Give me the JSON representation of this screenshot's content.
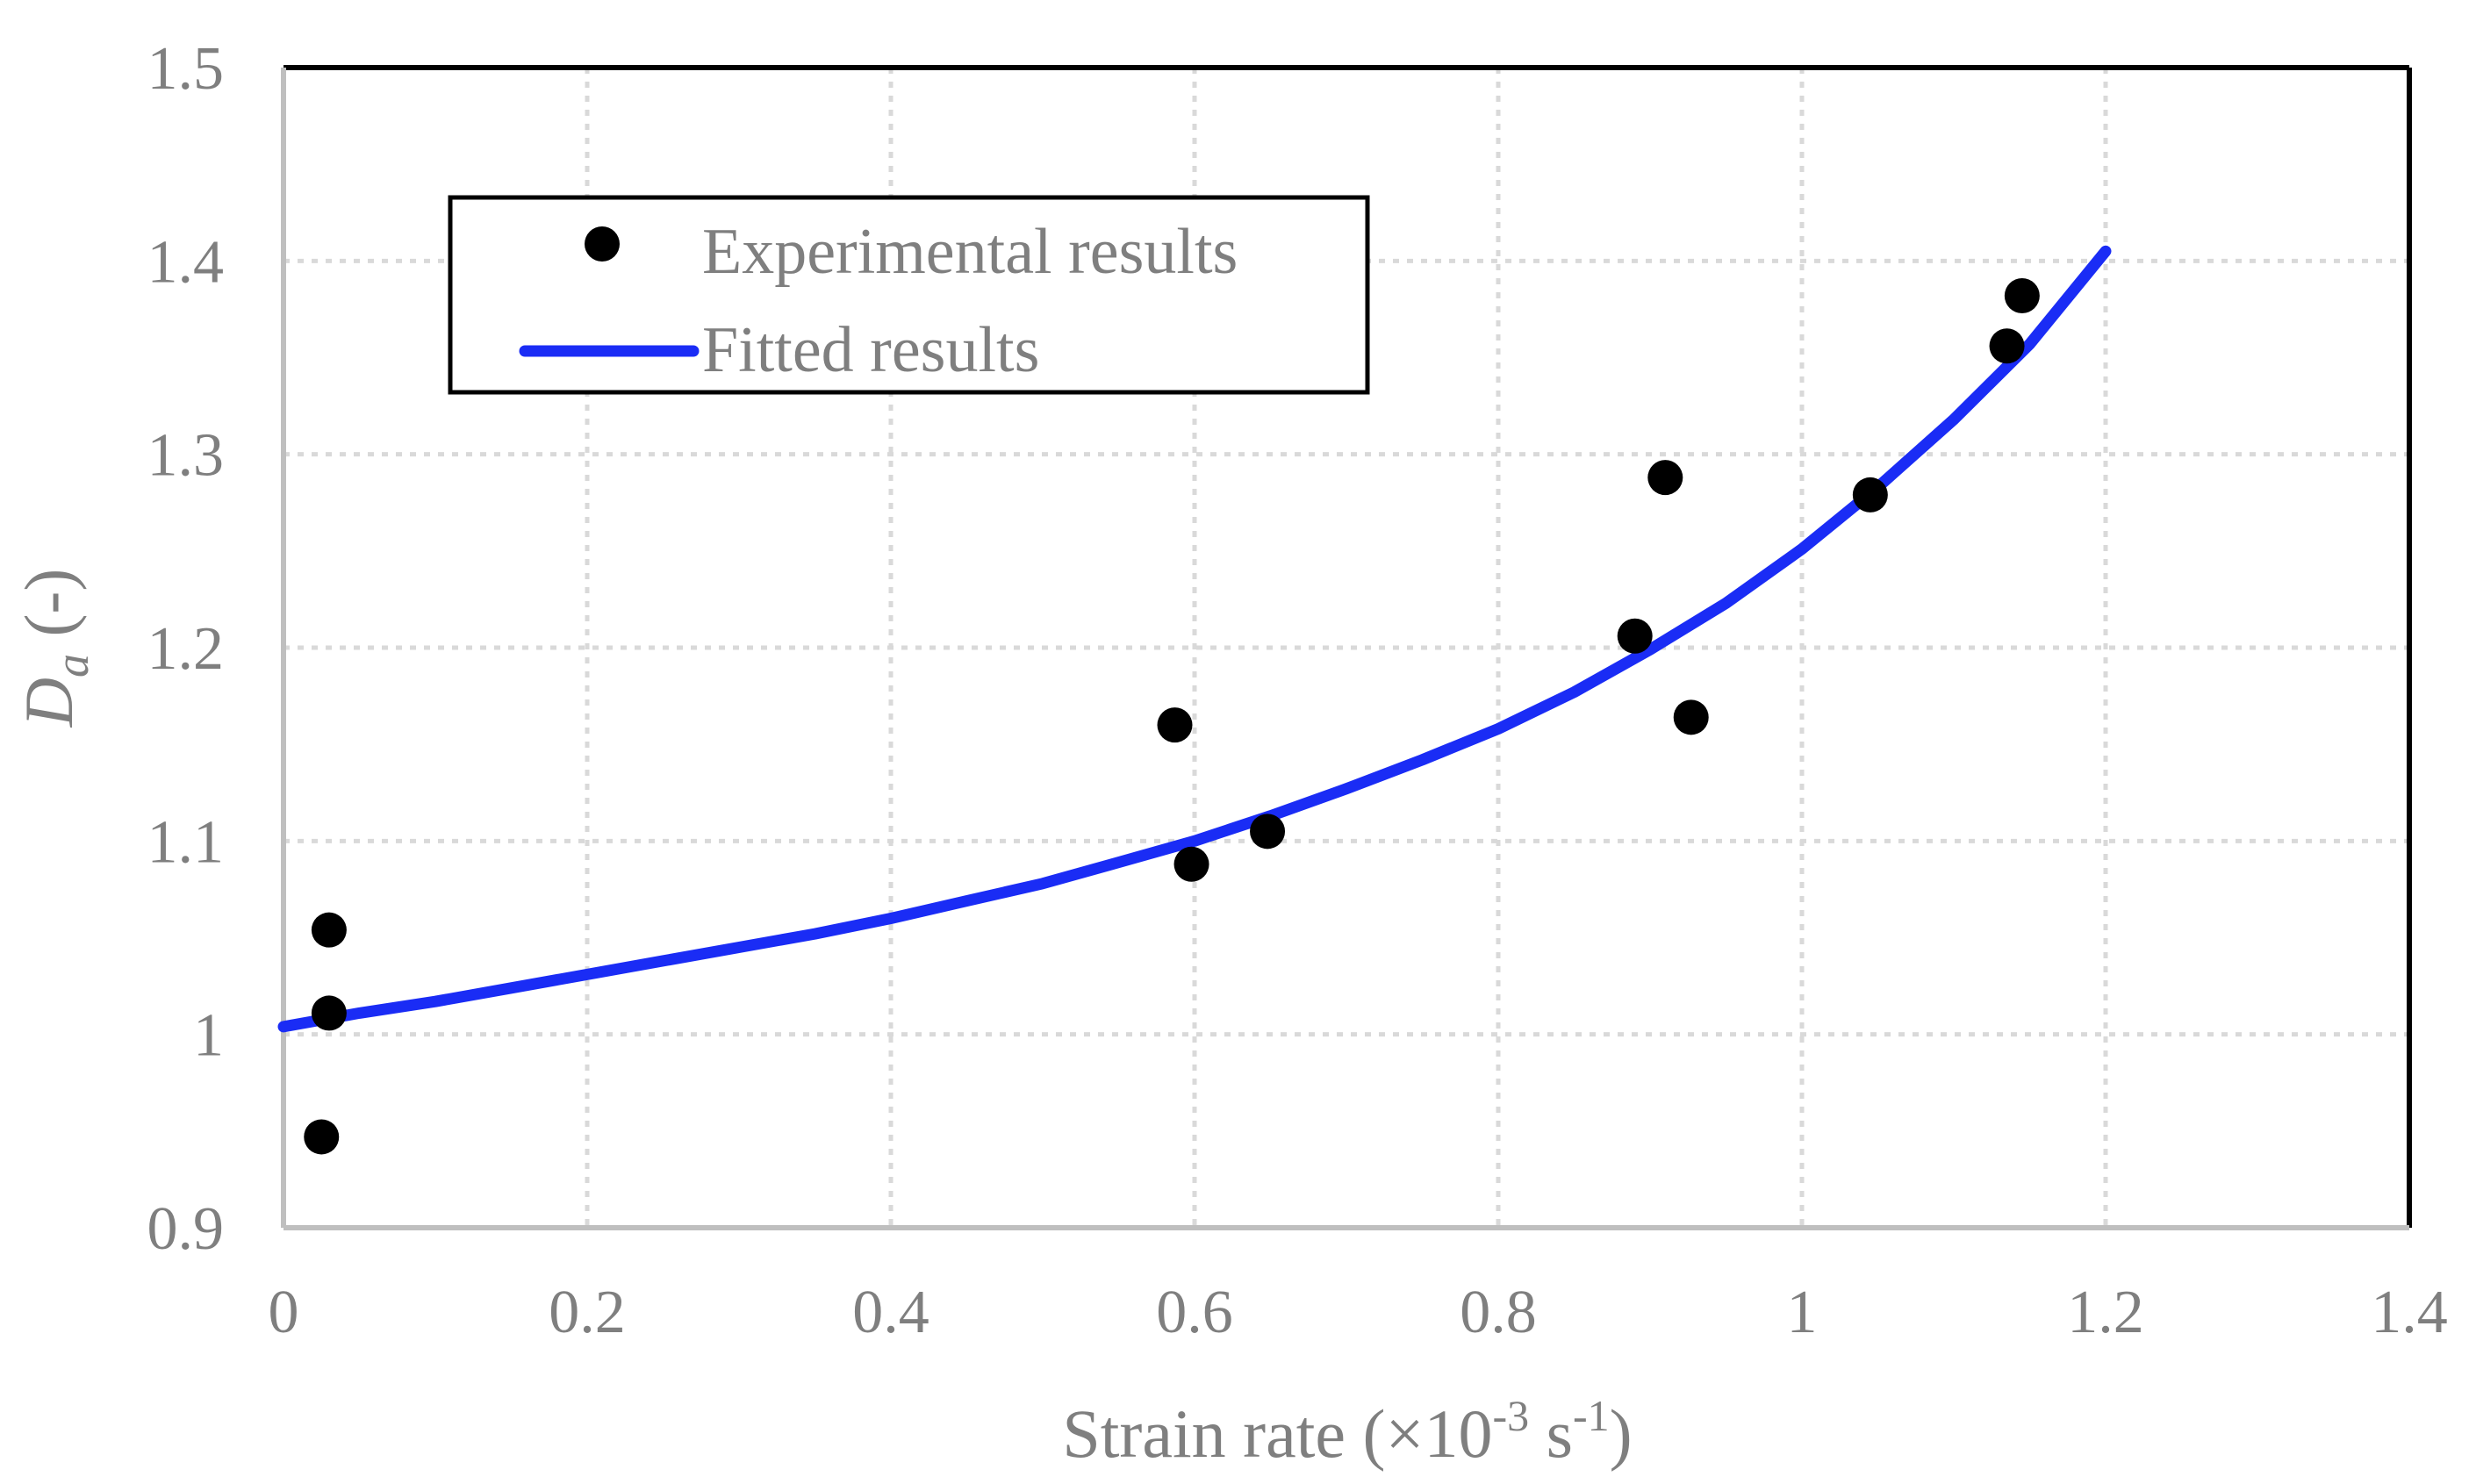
{
  "chart_data": {
    "type": "scatter",
    "title": "",
    "xlabel": {
      "prefix": "Strain rate (×10",
      "exp1": "-3",
      "mid": " s",
      "exp2": "-1",
      "suffix": ")"
    },
    "ylabel": {
      "main": "D",
      "sub": "a",
      "suffix": " (-)"
    },
    "xlim": [
      0,
      1.4
    ],
    "ylim": [
      0.9,
      1.5
    ],
    "x_ticks": [
      0,
      0.2,
      0.4,
      0.6,
      0.8,
      1.0,
      1.2,
      1.4
    ],
    "x_tick_labels": [
      "0",
      "0.2",
      "0.4",
      "0.6",
      "0.8",
      "1",
      "1.2",
      "1.4"
    ],
    "y_ticks": [
      0.9,
      1.0,
      1.1,
      1.2,
      1.3,
      1.4,
      1.5
    ],
    "y_tick_labels": [
      "0.9",
      "1",
      "1.1",
      "1.2",
      "1.3",
      "1.4",
      "1.5"
    ],
    "grid": true,
    "legend_position": "top-left",
    "series": [
      {
        "name": "Experimental results",
        "type": "scatter",
        "color": "#000000",
        "points": [
          {
            "x": 0.025,
            "y": 0.947
          },
          {
            "x": 0.03,
            "y": 1.011
          },
          {
            "x": 0.03,
            "y": 1.054
          },
          {
            "x": 0.587,
            "y": 1.16
          },
          {
            "x": 0.598,
            "y": 1.088
          },
          {
            "x": 0.648,
            "y": 1.105
          },
          {
            "x": 0.89,
            "y": 1.206
          },
          {
            "x": 0.91,
            "y": 1.288
          },
          {
            "x": 0.927,
            "y": 1.164
          },
          {
            "x": 1.045,
            "y": 1.279
          },
          {
            "x": 1.135,
            "y": 1.356
          },
          {
            "x": 1.145,
            "y": 1.382
          }
        ]
      },
      {
        "name": "Fitted results",
        "type": "line",
        "color": "#1a2cf5",
        "points": [
          {
            "x": 0.0,
            "y": 1.004
          },
          {
            "x": 0.05,
            "y": 1.011
          },
          {
            "x": 0.1,
            "y": 1.017
          },
          {
            "x": 0.15,
            "y": 1.024
          },
          {
            "x": 0.2,
            "y": 1.031
          },
          {
            "x": 0.25,
            "y": 1.038
          },
          {
            "x": 0.3,
            "y": 1.045
          },
          {
            "x": 0.35,
            "y": 1.052
          },
          {
            "x": 0.4,
            "y": 1.06
          },
          {
            "x": 0.45,
            "y": 1.069
          },
          {
            "x": 0.5,
            "y": 1.078
          },
          {
            "x": 0.55,
            "y": 1.089
          },
          {
            "x": 0.6,
            "y": 1.1
          },
          {
            "x": 0.65,
            "y": 1.113
          },
          {
            "x": 0.7,
            "y": 1.127
          },
          {
            "x": 0.75,
            "y": 1.142
          },
          {
            "x": 0.8,
            "y": 1.158
          },
          {
            "x": 0.85,
            "y": 1.177
          },
          {
            "x": 0.9,
            "y": 1.199
          },
          {
            "x": 0.95,
            "y": 1.223
          },
          {
            "x": 1.0,
            "y": 1.251
          },
          {
            "x": 1.05,
            "y": 1.283
          },
          {
            "x": 1.1,
            "y": 1.318
          },
          {
            "x": 1.15,
            "y": 1.357
          },
          {
            "x": 1.2,
            "y": 1.405
          }
        ]
      }
    ]
  }
}
